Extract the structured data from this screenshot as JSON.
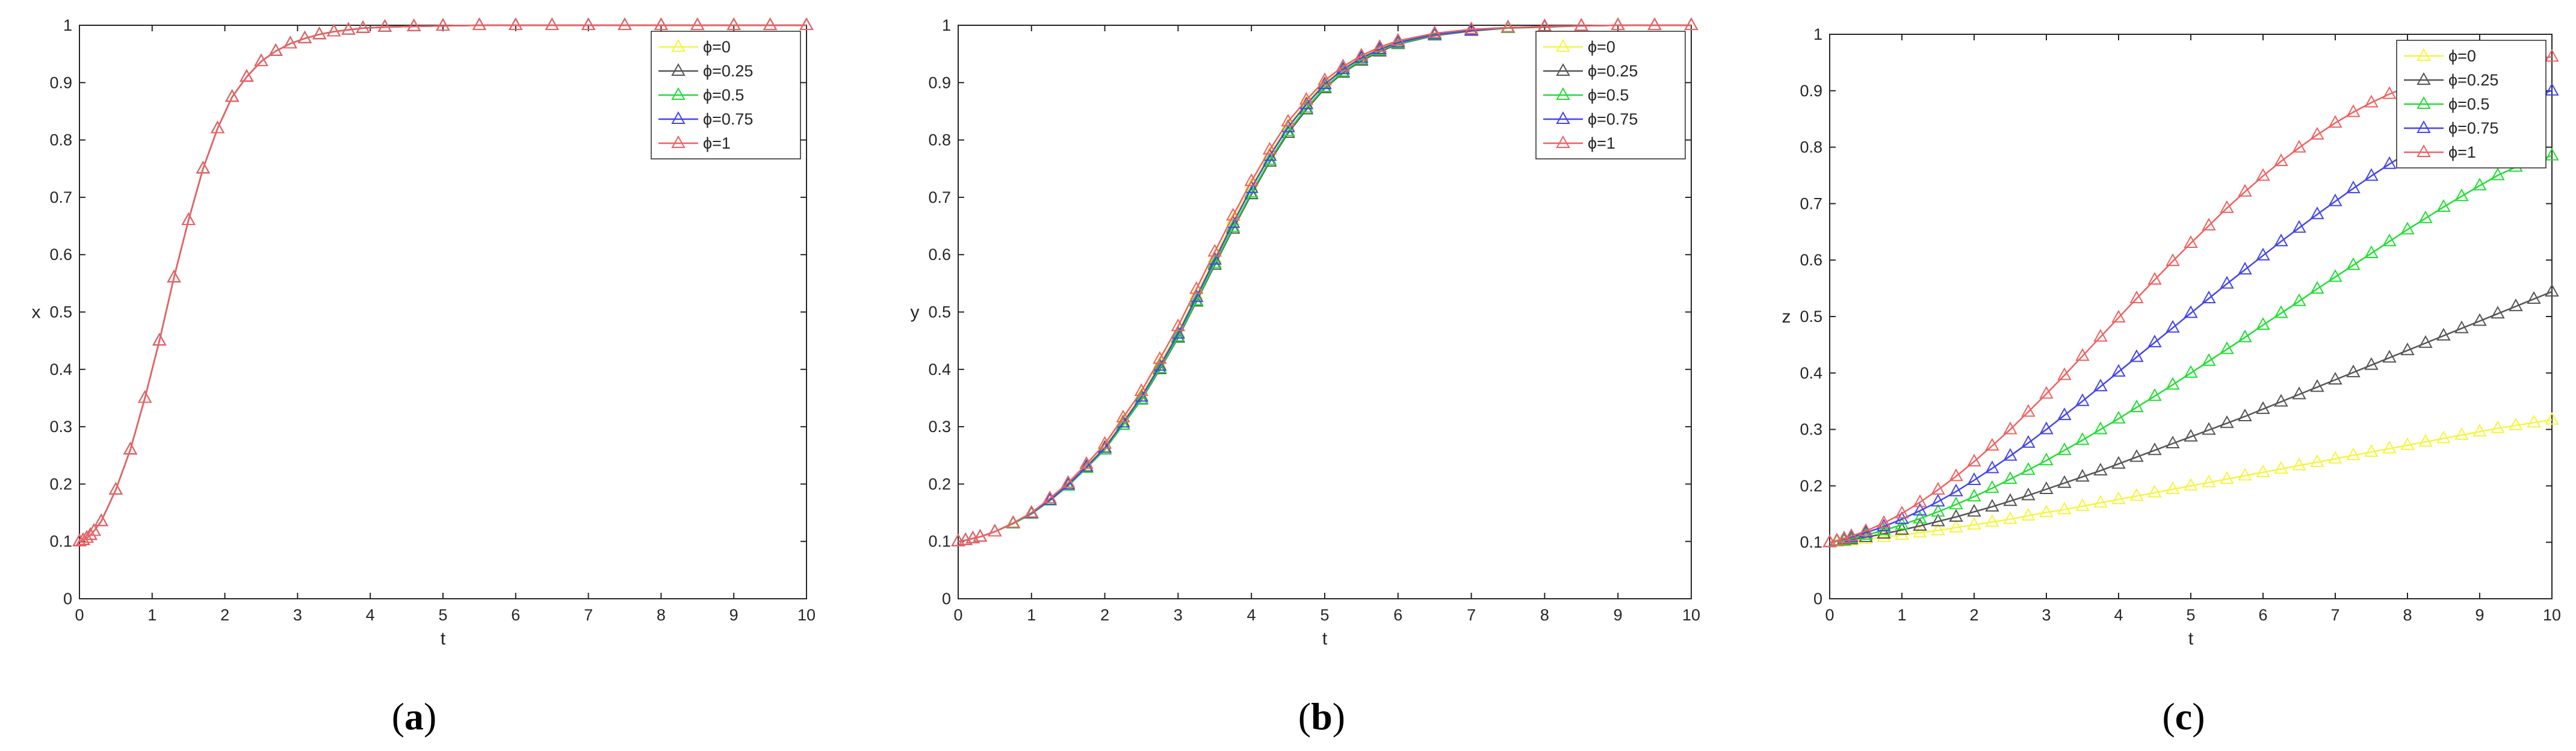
{
  "colors": {
    "phi0": "#f5f53d",
    "phi025": "#555555",
    "phi05": "#22dd33",
    "phi075": "#4444ee",
    "phi1": "#f06060"
  },
  "marker": "triangle-up-open",
  "chart_data": [
    {
      "type": "line",
      "panel_caption": {
        "open": "(",
        "letter": "a",
        "close": ")"
      },
      "xlabel": "t",
      "ylabel": "x",
      "xlim": [
        0,
        10
      ],
      "ylim": [
        0,
        1
      ],
      "xticks": [
        0,
        1,
        2,
        3,
        4,
        5,
        6,
        7,
        8,
        9,
        10
      ],
      "yticks": [
        0,
        0.1,
        0.2,
        0.3,
        0.4,
        0.5,
        0.6,
        0.7,
        0.8,
        0.9,
        1
      ],
      "legend": {
        "location": "top-right"
      },
      "x": [
        0,
        0.05,
        0.1,
        0.15,
        0.2,
        0.3,
        0.5,
        0.7,
        0.9,
        1.1,
        1.3,
        1.5,
        1.7,
        1.9,
        2.1,
        2.3,
        2.5,
        2.7,
        2.9,
        3.1,
        3.3,
        3.5,
        3.7,
        3.9,
        4.2,
        4.6,
        5.0,
        5.5,
        6.0,
        6.5,
        7.0,
        7.5,
        8.0,
        8.5,
        9.0,
        9.5,
        10.0
      ],
      "series": [
        {
          "name": "ϕ=0",
          "color_key": "phi0",
          "values": [
            0.1,
            0.102,
            0.106,
            0.111,
            0.118,
            0.135,
            0.19,
            0.26,
            0.35,
            0.45,
            0.56,
            0.66,
            0.75,
            0.82,
            0.875,
            0.91,
            0.937,
            0.955,
            0.968,
            0.977,
            0.984,
            0.989,
            0.992,
            0.995,
            0.997,
            0.998,
            0.999,
            1.0,
            1.0,
            1.0,
            1.0,
            1.0,
            1.0,
            1.0,
            1.0,
            1.0,
            1.0
          ]
        },
        {
          "name": "ϕ=0.25",
          "color_key": "phi025",
          "values": [
            0.1,
            0.102,
            0.106,
            0.111,
            0.118,
            0.135,
            0.19,
            0.26,
            0.35,
            0.45,
            0.56,
            0.66,
            0.75,
            0.82,
            0.875,
            0.91,
            0.937,
            0.955,
            0.968,
            0.977,
            0.984,
            0.989,
            0.992,
            0.995,
            0.997,
            0.998,
            0.999,
            1.0,
            1.0,
            1.0,
            1.0,
            1.0,
            1.0,
            1.0,
            1.0,
            1.0,
            1.0
          ]
        },
        {
          "name": "ϕ=0.5",
          "color_key": "phi05",
          "values": [
            0.1,
            0.102,
            0.106,
            0.111,
            0.118,
            0.135,
            0.19,
            0.26,
            0.35,
            0.45,
            0.56,
            0.66,
            0.75,
            0.82,
            0.875,
            0.91,
            0.937,
            0.955,
            0.968,
            0.977,
            0.984,
            0.989,
            0.992,
            0.995,
            0.997,
            0.998,
            0.999,
            1.0,
            1.0,
            1.0,
            1.0,
            1.0,
            1.0,
            1.0,
            1.0,
            1.0,
            1.0
          ]
        },
        {
          "name": "ϕ=0.75",
          "color_key": "phi075",
          "values": [
            0.1,
            0.102,
            0.106,
            0.111,
            0.118,
            0.135,
            0.19,
            0.26,
            0.35,
            0.45,
            0.56,
            0.66,
            0.75,
            0.82,
            0.875,
            0.91,
            0.937,
            0.955,
            0.968,
            0.977,
            0.984,
            0.989,
            0.992,
            0.995,
            0.997,
            0.998,
            0.999,
            1.0,
            1.0,
            1.0,
            1.0,
            1.0,
            1.0,
            1.0,
            1.0,
            1.0,
            1.0
          ]
        },
        {
          "name": "ϕ=1",
          "color_key": "phi1",
          "values": [
            0.1,
            0.102,
            0.106,
            0.111,
            0.118,
            0.135,
            0.19,
            0.26,
            0.35,
            0.45,
            0.56,
            0.66,
            0.75,
            0.82,
            0.875,
            0.91,
            0.937,
            0.955,
            0.968,
            0.977,
            0.984,
            0.989,
            0.992,
            0.995,
            0.997,
            0.998,
            0.999,
            1.0,
            1.0,
            1.0,
            1.0,
            1.0,
            1.0,
            1.0,
            1.0,
            1.0,
            1.0
          ]
        }
      ]
    },
    {
      "type": "line",
      "panel_caption": {
        "open": "(",
        "letter": "b",
        "close": ")"
      },
      "xlabel": "t",
      "ylabel": "y",
      "xlim": [
        0,
        10
      ],
      "ylim": [
        0,
        1
      ],
      "xticks": [
        0,
        1,
        2,
        3,
        4,
        5,
        6,
        7,
        8,
        9,
        10
      ],
      "yticks": [
        0,
        0.1,
        0.2,
        0.3,
        0.4,
        0.5,
        0.6,
        0.7,
        0.8,
        0.9,
        1
      ],
      "legend": {
        "location": "top-right"
      },
      "x": [
        0,
        0.1,
        0.2,
        0.3,
        0.5,
        0.75,
        1.0,
        1.25,
        1.5,
        1.75,
        2.0,
        2.25,
        2.5,
        2.75,
        3.0,
        3.25,
        3.5,
        3.75,
        4.0,
        4.25,
        4.5,
        4.75,
        5.0,
        5.25,
        5.5,
        5.75,
        6.0,
        6.5,
        7.0,
        7.5,
        8.0,
        8.5,
        9.0,
        9.5,
        10.0
      ],
      "series": [
        {
          "name": "ϕ=0",
          "color_key": "phi0",
          "values": [
            0.1,
            0.102,
            0.105,
            0.108,
            0.117,
            0.132,
            0.15,
            0.174,
            0.2,
            0.232,
            0.265,
            0.31,
            0.355,
            0.41,
            0.465,
            0.53,
            0.595,
            0.66,
            0.72,
            0.775,
            0.825,
            0.865,
            0.9,
            0.925,
            0.945,
            0.96,
            0.972,
            0.985,
            0.992,
            0.996,
            0.998,
            0.999,
            1.0,
            1.0,
            1.0
          ]
        },
        {
          "name": "ϕ=0.25",
          "color_key": "phi025",
          "values": [
            0.1,
            0.102,
            0.105,
            0.108,
            0.117,
            0.131,
            0.148,
            0.171,
            0.197,
            0.228,
            0.26,
            0.303,
            0.347,
            0.4,
            0.455,
            0.518,
            0.582,
            0.645,
            0.705,
            0.762,
            0.812,
            0.853,
            0.89,
            0.917,
            0.938,
            0.954,
            0.967,
            0.982,
            0.99,
            0.995,
            0.997,
            0.999,
            1.0,
            1.0,
            1.0
          ]
        },
        {
          "name": "ϕ=0.5",
          "color_key": "phi05",
          "values": [
            0.1,
            0.102,
            0.105,
            0.108,
            0.117,
            0.131,
            0.148,
            0.171,
            0.197,
            0.228,
            0.26,
            0.303,
            0.348,
            0.402,
            0.457,
            0.52,
            0.585,
            0.648,
            0.708,
            0.765,
            0.815,
            0.856,
            0.892,
            0.919,
            0.94,
            0.956,
            0.968,
            0.983,
            0.991,
            0.995,
            0.998,
            0.999,
            1.0,
            1.0,
            1.0
          ]
        },
        {
          "name": "ϕ=0.75",
          "color_key": "phi075",
          "values": [
            0.1,
            0.102,
            0.105,
            0.108,
            0.117,
            0.132,
            0.149,
            0.172,
            0.199,
            0.23,
            0.263,
            0.307,
            0.352,
            0.406,
            0.462,
            0.526,
            0.591,
            0.655,
            0.716,
            0.772,
            0.822,
            0.862,
            0.897,
            0.923,
            0.943,
            0.958,
            0.97,
            0.984,
            0.991,
            0.996,
            0.998,
            0.999,
            1.0,
            1.0,
            1.0
          ]
        },
        {
          "name": "ϕ=1",
          "color_key": "phi1",
          "values": [
            0.1,
            0.102,
            0.105,
            0.108,
            0.117,
            0.132,
            0.15,
            0.175,
            0.202,
            0.235,
            0.27,
            0.316,
            0.362,
            0.418,
            0.475,
            0.54,
            0.605,
            0.668,
            0.728,
            0.783,
            0.832,
            0.87,
            0.904,
            0.928,
            0.947,
            0.962,
            0.973,
            0.986,
            0.993,
            0.996,
            0.998,
            0.999,
            1.0,
            1.0,
            1.0
          ]
        }
      ]
    },
    {
      "type": "line",
      "panel_caption": {
        "open": "(",
        "letter": "c",
        "close": ")"
      },
      "xlabel": "t",
      "ylabel": "z",
      "xlim": [
        0,
        10
      ],
      "ylim": [
        0,
        1
      ],
      "xticks": [
        0,
        1,
        2,
        3,
        4,
        5,
        6,
        7,
        8,
        9,
        10
      ],
      "yticks": [
        0,
        0.1,
        0.2,
        0.3,
        0.4,
        0.5,
        0.6,
        0.7,
        0.8,
        0.9,
        1
      ],
      "legend": {
        "location": "top-right"
      },
      "x": [
        0,
        0.1,
        0.2,
        0.3,
        0.5,
        0.75,
        1.0,
        1.25,
        1.5,
        1.75,
        2.0,
        2.25,
        2.5,
        2.75,
        3.0,
        3.25,
        3.5,
        3.75,
        4.0,
        4.25,
        4.5,
        4.75,
        5.0,
        5.25,
        5.5,
        5.75,
        6.0,
        6.25,
        6.5,
        6.75,
        7.0,
        7.25,
        7.5,
        7.75,
        8.0,
        8.25,
        8.5,
        8.75,
        9.0,
        9.25,
        9.5,
        9.75,
        10.0
      ],
      "series": [
        {
          "name": "ϕ=0",
          "color_key": "phi0",
          "values": [
            0.1,
            0.101,
            0.102,
            0.103,
            0.106,
            0.109,
            0.113,
            0.117,
            0.121,
            0.126,
            0.131,
            0.136,
            0.141,
            0.147,
            0.153,
            0.158,
            0.164,
            0.17,
            0.176,
            0.182,
            0.188,
            0.194,
            0.2,
            0.206,
            0.212,
            0.218,
            0.224,
            0.23,
            0.236,
            0.242,
            0.248,
            0.254,
            0.26,
            0.266,
            0.272,
            0.278,
            0.284,
            0.29,
            0.296,
            0.302,
            0.307,
            0.312,
            0.317
          ]
        },
        {
          "name": "ϕ=0.25",
          "color_key": "phi025",
          "values": [
            0.1,
            0.102,
            0.103,
            0.105,
            0.109,
            0.115,
            0.122,
            0.129,
            0.137,
            0.145,
            0.154,
            0.163,
            0.173,
            0.183,
            0.194,
            0.205,
            0.216,
            0.227,
            0.239,
            0.251,
            0.263,
            0.275,
            0.287,
            0.299,
            0.311,
            0.323,
            0.336,
            0.349,
            0.362,
            0.375,
            0.388,
            0.401,
            0.414,
            0.427,
            0.44,
            0.453,
            0.466,
            0.479,
            0.492,
            0.505,
            0.518,
            0.531,
            0.544
          ]
        },
        {
          "name": "ϕ=0.5",
          "color_key": "phi05",
          "values": [
            0.1,
            0.102,
            0.104,
            0.107,
            0.113,
            0.121,
            0.131,
            0.142,
            0.154,
            0.167,
            0.181,
            0.196,
            0.212,
            0.228,
            0.245,
            0.263,
            0.281,
            0.3,
            0.319,
            0.339,
            0.359,
            0.379,
            0.4,
            0.421,
            0.442,
            0.463,
            0.485,
            0.506,
            0.527,
            0.549,
            0.57,
            0.591,
            0.612,
            0.633,
            0.654,
            0.674,
            0.694,
            0.713,
            0.732,
            0.75,
            0.765,
            0.775,
            0.785
          ]
        },
        {
          "name": "ϕ=0.75",
          "color_key": "phi075",
          "values": [
            0.1,
            0.103,
            0.106,
            0.109,
            0.117,
            0.128,
            0.141,
            0.156,
            0.172,
            0.19,
            0.21,
            0.231,
            0.253,
            0.276,
            0.3,
            0.325,
            0.35,
            0.376,
            0.402,
            0.428,
            0.454,
            0.48,
            0.506,
            0.532,
            0.558,
            0.583,
            0.608,
            0.633,
            0.657,
            0.681,
            0.704,
            0.727,
            0.749,
            0.77,
            0.79,
            0.809,
            0.827,
            0.844,
            0.859,
            0.872,
            0.883,
            0.892,
            0.9
          ]
        },
        {
          "name": "ϕ=1",
          "color_key": "phi1",
          "values": [
            0.1,
            0.103,
            0.107,
            0.111,
            0.12,
            0.134,
            0.151,
            0.171,
            0.193,
            0.217,
            0.243,
            0.271,
            0.3,
            0.331,
            0.363,
            0.396,
            0.43,
            0.464,
            0.498,
            0.532,
            0.565,
            0.598,
            0.63,
            0.661,
            0.692,
            0.721,
            0.749,
            0.775,
            0.799,
            0.822,
            0.843,
            0.862,
            0.879,
            0.894,
            0.907,
            0.918,
            0.927,
            0.935,
            0.942,
            0.948,
            0.953,
            0.957,
            0.96
          ]
        }
      ]
    }
  ]
}
